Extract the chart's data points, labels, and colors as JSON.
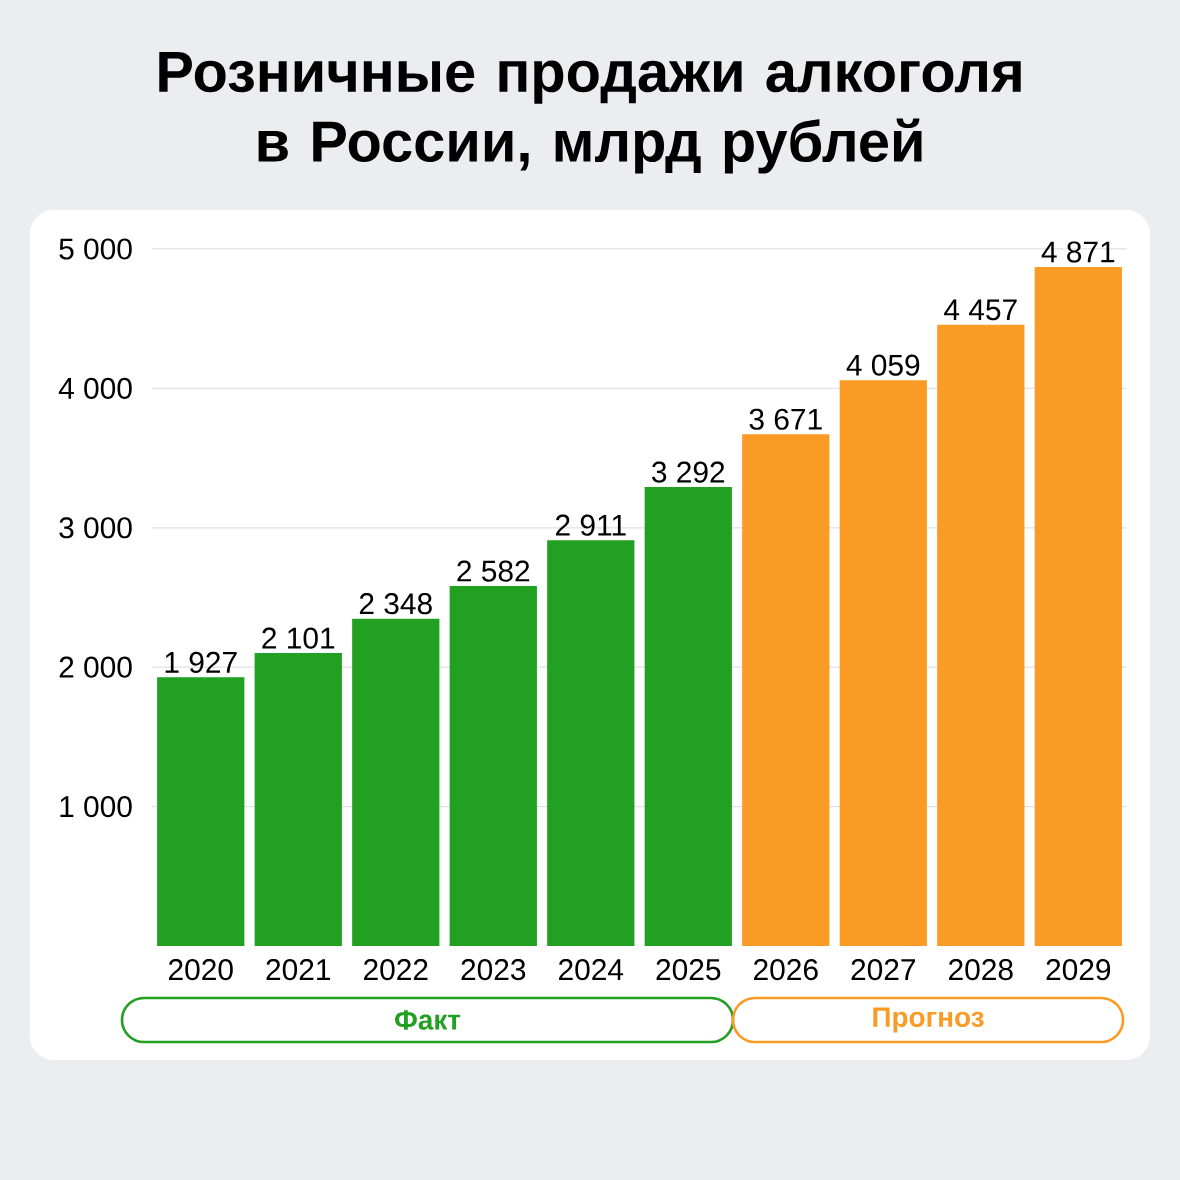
{
  "chart_data": {
    "type": "bar",
    "title": "Розничные продажи алкоголя в России, млрд рублей",
    "categories": [
      "2020",
      "2021",
      "2022",
      "2023",
      "2024",
      "2025",
      "2026",
      "2027",
      "2028",
      "2029"
    ],
    "series": [
      {
        "name": "Факт",
        "color": "#21a021",
        "values": [
          1927,
          2101,
          2348,
          2582,
          2911,
          3292,
          null,
          null,
          null,
          null
        ],
        "value_labels": [
          "1 927",
          "2 101",
          "2 348",
          "2 582",
          "2 911",
          "3 292",
          null,
          null,
          null,
          null
        ]
      },
      {
        "name": "Прогноз",
        "color": "#f99b25",
        "values": [
          null,
          null,
          null,
          null,
          null,
          null,
          3671,
          4059,
          4457,
          4871
        ],
        "value_labels": [
          null,
          null,
          null,
          null,
          null,
          null,
          "3 671",
          "4 059",
          "4 457",
          "4 871"
        ]
      }
    ],
    "ylim": [
      0,
      5000
    ],
    "yticks": [
      {
        "value": 1000,
        "label": "1 000"
      },
      {
        "value": 2000,
        "label": "2 000"
      },
      {
        "value": 3000,
        "label": "3 000"
      },
      {
        "value": 4000,
        "label": "4 000"
      },
      {
        "value": 5000,
        "label": "5 000"
      }
    ],
    "grid": "y"
  }
}
